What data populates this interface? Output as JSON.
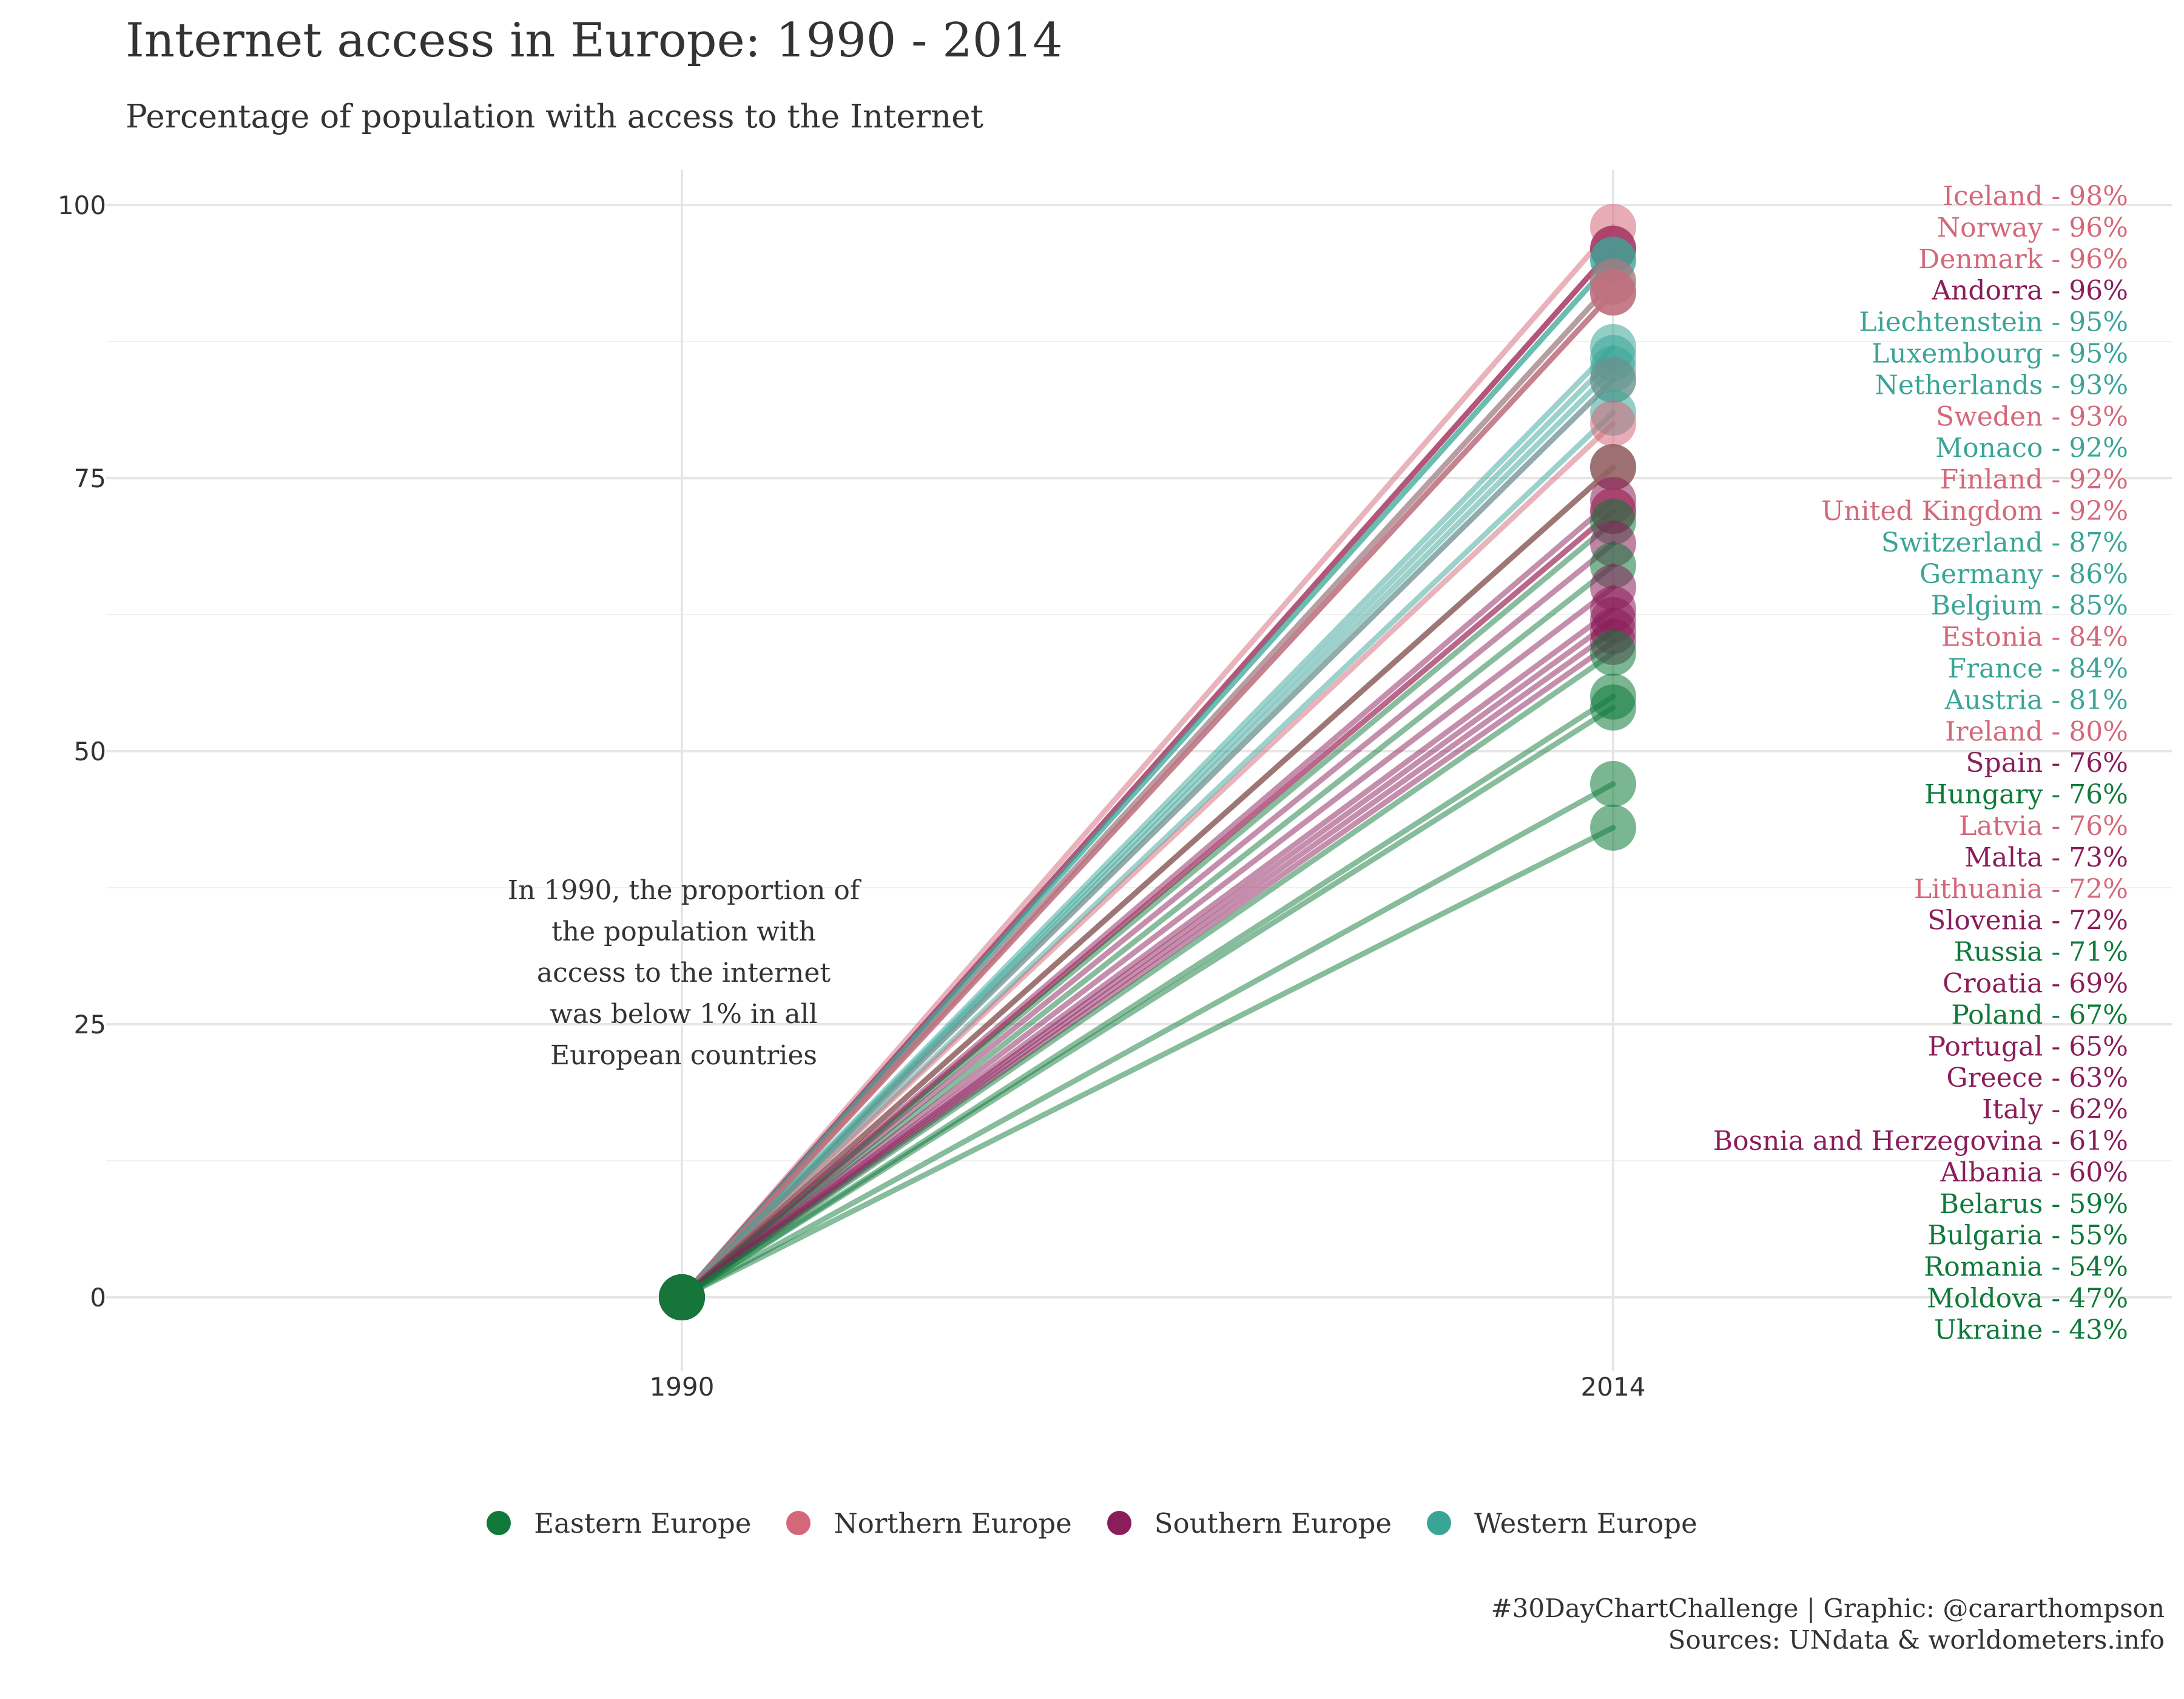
{
  "title": "Internet access in Europe: 1990 - 2014",
  "subtitle": "Percentage of population with access to the Internet",
  "caption": {
    "line1": "#30DayChartChallenge | Graphic: @cararthompson",
    "line2": "Sources: UNdata & worldometers.info"
  },
  "annotation": [
    "In 1990, the proportion of",
    "the population with",
    "access to the internet",
    "was below 1% in all",
    "European countries"
  ],
  "colors": {
    "Eastern Europe": "#0f7a3a",
    "Northern Europe": "#d4687a",
    "Southern Europe": "#8a1d5a",
    "Western Europe": "#3aa597"
  },
  "legend": [
    {
      "label": "Eastern Europe",
      "region": "Eastern Europe"
    },
    {
      "label": "Northern Europe",
      "region": "Northern Europe"
    },
    {
      "label": "Southern Europe",
      "region": "Southern Europe"
    },
    {
      "label": "Western Europe",
      "region": "Western Europe"
    }
  ],
  "chart_data": {
    "type": "line",
    "x": [
      1990,
      2014
    ],
    "x_tick_labels": [
      "1990",
      "2014"
    ],
    "y_ticks": [
      0,
      25,
      50,
      75,
      100
    ],
    "ylim": [
      -5,
      103
    ],
    "grid": true,
    "legend_position": "bottom",
    "series": [
      {
        "name": "Iceland",
        "region": "Northern Europe",
        "values": [
          0,
          98
        ],
        "label": "Iceland - 98%"
      },
      {
        "name": "Norway",
        "region": "Northern Europe",
        "values": [
          0,
          96
        ],
        "label": "Norway - 96%"
      },
      {
        "name": "Denmark",
        "region": "Northern Europe",
        "values": [
          0,
          96
        ],
        "label": "Denmark - 96%"
      },
      {
        "name": "Andorra",
        "region": "Southern Europe",
        "values": [
          0,
          96
        ],
        "label": "Andorra - 96%"
      },
      {
        "name": "Liechtenstein",
        "region": "Western Europe",
        "values": [
          0,
          95
        ],
        "label": "Liechtenstein - 95%"
      },
      {
        "name": "Luxembourg",
        "region": "Western Europe",
        "values": [
          0,
          95
        ],
        "label": "Luxembourg - 95%"
      },
      {
        "name": "Netherlands",
        "region": "Western Europe",
        "values": [
          0,
          93
        ],
        "label": "Netherlands - 93%"
      },
      {
        "name": "Sweden",
        "region": "Northern Europe",
        "values": [
          0,
          93
        ],
        "label": "Sweden - 93%"
      },
      {
        "name": "Monaco",
        "region": "Western Europe",
        "values": [
          0,
          92
        ],
        "label": "Monaco - 92%"
      },
      {
        "name": "Finland",
        "region": "Northern Europe",
        "values": [
          0,
          92
        ],
        "label": "Finland - 92%"
      },
      {
        "name": "United Kingdom",
        "region": "Northern Europe",
        "values": [
          0,
          92
        ],
        "label": "United Kingdom - 92%"
      },
      {
        "name": "Switzerland",
        "region": "Western Europe",
        "values": [
          0,
          87
        ],
        "label": "Switzerland - 87%"
      },
      {
        "name": "Germany",
        "region": "Western Europe",
        "values": [
          0,
          86
        ],
        "label": "Germany - 86%"
      },
      {
        "name": "Belgium",
        "region": "Western Europe",
        "values": [
          0,
          85
        ],
        "label": "Belgium - 85%"
      },
      {
        "name": "Estonia",
        "region": "Northern Europe",
        "values": [
          0,
          84
        ],
        "label": "Estonia - 84%"
      },
      {
        "name": "France",
        "region": "Western Europe",
        "values": [
          0,
          84
        ],
        "label": "France - 84%"
      },
      {
        "name": "Austria",
        "region": "Western Europe",
        "values": [
          0,
          81
        ],
        "label": "Austria - 81%"
      },
      {
        "name": "Ireland",
        "region": "Northern Europe",
        "values": [
          0,
          80
        ],
        "label": "Ireland - 80%"
      },
      {
        "name": "Spain",
        "region": "Southern Europe",
        "values": [
          0,
          76
        ],
        "label": "Spain - 76%"
      },
      {
        "name": "Hungary",
        "region": "Eastern Europe",
        "values": [
          0,
          76
        ],
        "label": "Hungary - 76%"
      },
      {
        "name": "Latvia",
        "region": "Northern Europe",
        "values": [
          0,
          76
        ],
        "label": "Latvia - 76%"
      },
      {
        "name": "Malta",
        "region": "Southern Europe",
        "values": [
          0,
          73
        ],
        "label": "Malta - 73%"
      },
      {
        "name": "Lithuania",
        "region": "Northern Europe",
        "values": [
          0,
          72
        ],
        "label": "Lithuania - 72%"
      },
      {
        "name": "Slovenia",
        "region": "Southern Europe",
        "values": [
          0,
          72
        ],
        "label": "Slovenia - 72%"
      },
      {
        "name": "Russia",
        "region": "Eastern Europe",
        "values": [
          0,
          71
        ],
        "label": "Russia - 71%"
      },
      {
        "name": "Croatia",
        "region": "Southern Europe",
        "values": [
          0,
          69
        ],
        "label": "Croatia - 69%"
      },
      {
        "name": "Poland",
        "region": "Eastern Europe",
        "values": [
          0,
          67
        ],
        "label": "Poland - 67%"
      },
      {
        "name": "Portugal",
        "region": "Southern Europe",
        "values": [
          0,
          65
        ],
        "label": "Portugal - 65%"
      },
      {
        "name": "Greece",
        "region": "Southern Europe",
        "values": [
          0,
          63
        ],
        "label": "Greece - 63%"
      },
      {
        "name": "Italy",
        "region": "Southern Europe",
        "values": [
          0,
          62
        ],
        "label": "Italy - 62%"
      },
      {
        "name": "Bosnia and Herzegovina",
        "region": "Southern Europe",
        "values": [
          0,
          61
        ],
        "label": "Bosnia and Herzegovina - 61%"
      },
      {
        "name": "Albania",
        "region": "Southern Europe",
        "values": [
          0,
          60
        ],
        "label": "Albania - 60%"
      },
      {
        "name": "Belarus",
        "region": "Eastern Europe",
        "values": [
          0,
          59
        ],
        "label": "Belarus - 59%"
      },
      {
        "name": "Bulgaria",
        "region": "Eastern Europe",
        "values": [
          0,
          55
        ],
        "label": "Bulgaria - 55%"
      },
      {
        "name": "Romania",
        "region": "Eastern Europe",
        "values": [
          0,
          54
        ],
        "label": "Romania - 54%"
      },
      {
        "name": "Moldova",
        "region": "Eastern Europe",
        "values": [
          0,
          47
        ],
        "label": "Moldova - 47%"
      },
      {
        "name": "Ukraine",
        "region": "Eastern Europe",
        "values": [
          0,
          43
        ],
        "label": "Ukraine - 43%"
      }
    ]
  }
}
